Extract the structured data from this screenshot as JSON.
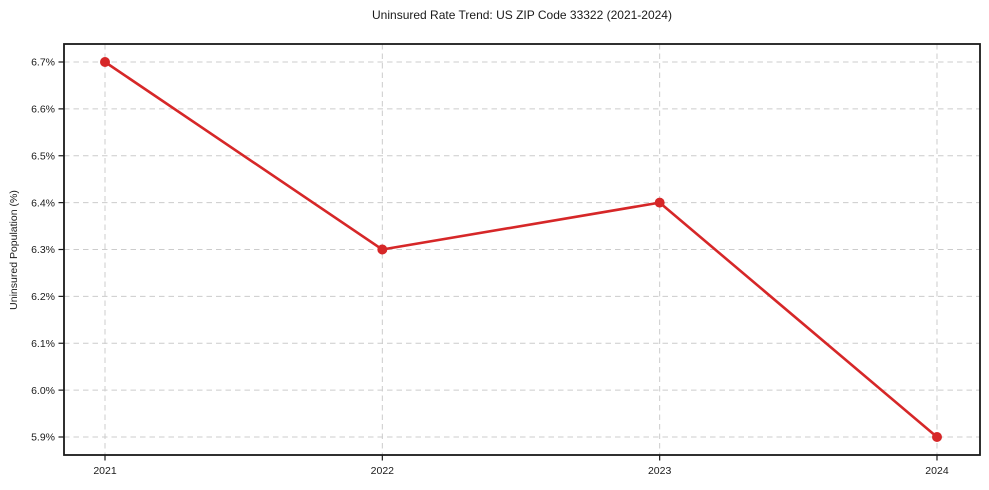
{
  "chart_data": {
    "type": "line",
    "title": "Uninsured Rate Trend: US ZIP Code 33322 (2021-2024)",
    "xlabel": "",
    "ylabel": "Uninsured Population (%)",
    "x": [
      "2021",
      "2022",
      "2023",
      "2024"
    ],
    "values": [
      6.7,
      6.3,
      6.4,
      5.9
    ],
    "unit": "%",
    "ylim": [
      5.86,
      6.74
    ],
    "yticks": [
      6.7,
      6.6,
      6.5,
      6.4,
      6.3,
      6.2,
      6.1,
      6.0,
      5.9
    ],
    "ytick_labels": [
      "6.7%",
      "6.6%",
      "6.5%",
      "6.4%",
      "6.3%",
      "6.2%",
      "6.1%",
      "6.0%",
      "5.9%"
    ],
    "grid": true,
    "grid_style": "dashed",
    "legend_position": "none",
    "line_color": "#d62728",
    "marker": "circle",
    "background_color": "#ffffff"
  }
}
